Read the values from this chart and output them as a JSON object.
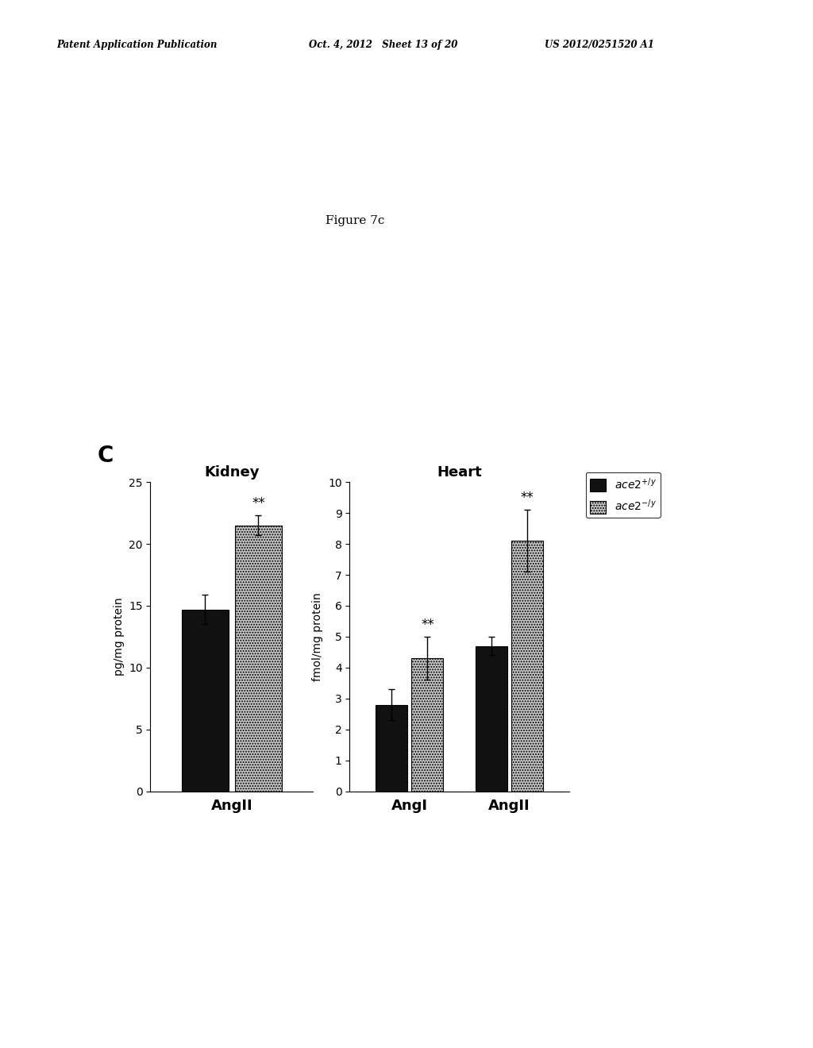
{
  "header_left": "Patent Application Publication",
  "header_mid": "Oct. 4, 2012   Sheet 13 of 20",
  "header_right": "US 2012/0251520 A1",
  "figure_label": "Figure 7c",
  "panel_label": "C",
  "kidney": {
    "title": "Kidney",
    "ylabel": "pg/mg protein",
    "ylim": [
      0,
      25
    ],
    "yticks": [
      0,
      5,
      10,
      15,
      20,
      25
    ],
    "groups": [
      "AngII"
    ],
    "black_values": [
      14.7
    ],
    "black_errors": [
      1.2
    ],
    "dotted_values": [
      21.5
    ],
    "dotted_errors": [
      0.8
    ],
    "significance_dotted": [
      "**"
    ],
    "significance_black": [
      null
    ]
  },
  "heart": {
    "title": "Heart",
    "ylabel": "fmol/mg protein",
    "ylim": [
      0,
      10
    ],
    "yticks": [
      0,
      1,
      2,
      3,
      4,
      5,
      6,
      7,
      8,
      9,
      10
    ],
    "groups": [
      "AngI",
      "AngII"
    ],
    "black_values": [
      2.8,
      4.7
    ],
    "black_errors": [
      0.5,
      0.3
    ],
    "dotted_values": [
      4.3,
      8.1
    ],
    "dotted_errors": [
      0.7,
      1.0
    ],
    "significance_dotted": [
      "**",
      "**"
    ],
    "significance_black": [
      null,
      null
    ]
  },
  "legend": {
    "black_label": "ace2+/y",
    "dotted_label": "ace2-/y"
  },
  "bar_width": 0.32,
  "black_color": "#111111",
  "dotted_color": "#b0b0b0",
  "background_color": "#ffffff",
  "font_color": "#000000"
}
